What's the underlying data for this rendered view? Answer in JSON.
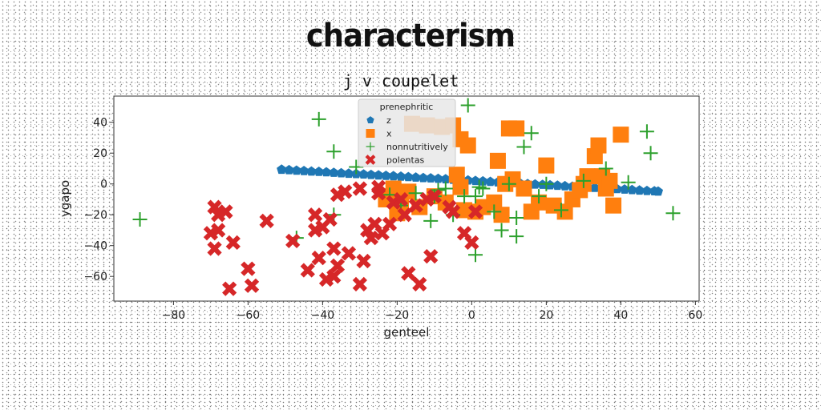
{
  "main_title": "characterism",
  "chart_data": {
    "type": "scatter",
    "title": "j v coupelet",
    "xlabel": "genteel",
    "ylabel": "ygapo",
    "xlim": [
      -96,
      61
    ],
    "ylim": [
      -76,
      57
    ],
    "xticks": [
      -80,
      -60,
      -40,
      -20,
      0,
      20,
      40,
      60
    ],
    "yticks": [
      -60,
      -40,
      -20,
      0,
      20,
      40
    ],
    "xtick_labels": [
      "−80",
      "−60",
      "−40",
      "−20",
      "0",
      "20",
      "40",
      "60"
    ],
    "ytick_labels": [
      "−60",
      "−40",
      "−20",
      "0",
      "20",
      "40"
    ],
    "grid": false,
    "legend": {
      "title": "prenephritic",
      "placement": "top-center"
    },
    "series": [
      {
        "name": "z",
        "marker": "pentagon",
        "color": "#1f77b4",
        "x": [
          -51,
          -49,
          -47,
          -45,
          -43,
          -41,
          -39,
          -37,
          -35,
          -33,
          -31,
          -29,
          -27,
          -25,
          -23,
          -21,
          -19,
          -17,
          -15,
          -13,
          -11,
          -9,
          -7,
          -5,
          -3,
          -1,
          1,
          3,
          5,
          7,
          9,
          11,
          13,
          15,
          17,
          19,
          21,
          23,
          25,
          27,
          29,
          31,
          33,
          35,
          37,
          39,
          41,
          43,
          45,
          47,
          49,
          50
        ],
        "y": [
          9.3,
          9.0,
          8.7,
          8.4,
          8.1,
          7.9,
          7.6,
          7.3,
          7.0,
          6.7,
          6.5,
          6.2,
          5.9,
          5.6,
          5.3,
          5.1,
          4.8,
          4.5,
          4.2,
          3.9,
          3.7,
          3.4,
          3.1,
          2.8,
          2.5,
          2.3,
          2.0,
          1.7,
          1.4,
          1.1,
          0.9,
          0.6,
          0.3,
          0.0,
          -0.3,
          -0.5,
          -0.8,
          -1.1,
          -1.4,
          -1.7,
          -1.9,
          -2.2,
          -2.5,
          -2.8,
          -3.1,
          -3.3,
          -3.6,
          -3.9,
          -4.2,
          -4.5,
          -4.7,
          -4.9
        ]
      },
      {
        "name": "x",
        "marker": "square",
        "color": "#ff7f0e",
        "x": [
          -16,
          -12,
          -8,
          -5,
          -3,
          -1,
          -4,
          -22,
          -19,
          -14,
          -21,
          -23,
          -20,
          -17,
          -10,
          -7,
          -2,
          1,
          3,
          6,
          8,
          10,
          12,
          14,
          16,
          18,
          20,
          22,
          25,
          27,
          29,
          30,
          31,
          33,
          34,
          35,
          36,
          37,
          38,
          40,
          7,
          9,
          11,
          -3
        ],
        "y": [
          39,
          38,
          37,
          38,
          29,
          25,
          6,
          -8,
          -12,
          -15,
          -3,
          -10,
          -19,
          -5,
          -8,
          -12,
          -17,
          -18,
          -15,
          -12,
          -20,
          36,
          36,
          -3,
          -18,
          -12,
          12,
          -14,
          -18,
          -10,
          -4,
          0,
          5,
          18,
          25,
          5,
          -3,
          2,
          -14,
          32,
          15,
          0,
          3,
          -2
        ]
      },
      {
        "name": "nonnutritively",
        "marker": "plus",
        "color": "#2ca02c",
        "x": [
          -89,
          -41,
          -37,
          -37,
          -31,
          -22,
          -19,
          -15,
          -11,
          -9,
          -5,
          -2,
          -1,
          1,
          1,
          3,
          6,
          8,
          10,
          12,
          14,
          16,
          18,
          20,
          24,
          30,
          36,
          42,
          47,
          48,
          54,
          -47,
          -10,
          2,
          12,
          -7
        ],
        "y": [
          -23,
          42,
          21,
          -20,
          11,
          -7,
          -14,
          -6,
          -24,
          -4,
          -20,
          -8,
          51,
          -8,
          -46,
          -3,
          -18,
          -30,
          0,
          -34,
          24,
          33,
          -8,
          0,
          -17,
          2,
          10,
          1,
          34,
          20,
          -19,
          -35,
          -8,
          -2,
          -22,
          -3
        ],
        "hidden_x": []
      },
      {
        "name": "polentas",
        "marker": "x",
        "color": "#d62728",
        "x": [
          -69,
          -68,
          -68,
          -69,
          -66,
          -70,
          -64,
          -65,
          -60,
          -59,
          -55,
          -48,
          -44,
          -42,
          -40,
          -42,
          -38,
          -41,
          -39,
          -37,
          -36,
          -33,
          -27,
          -29,
          -30,
          -28,
          -26,
          -24,
          -22,
          -21,
          -19,
          -15,
          -12,
          -10,
          -6,
          -5,
          -2,
          0,
          1,
          -36,
          -34,
          -37,
          -30,
          -25,
          -11,
          -14,
          -17,
          -25,
          -18
        ],
        "y": [
          -15,
          -20,
          -30,
          -42,
          -18,
          -32,
          -38,
          -68,
          -55,
          -66,
          -24,
          -37,
          -56,
          -30,
          -28,
          -20,
          -23,
          -48,
          -62,
          -60,
          -53,
          -45,
          -35,
          -50,
          -65,
          -30,
          -26,
          -32,
          -26,
          -12,
          -10,
          -14,
          -10,
          -8,
          -15,
          -18,
          -32,
          -38,
          -18,
          -7,
          -5,
          -42,
          -3,
          -2,
          -47,
          -65,
          -58,
          -6,
          -20
        ]
      }
    ]
  }
}
